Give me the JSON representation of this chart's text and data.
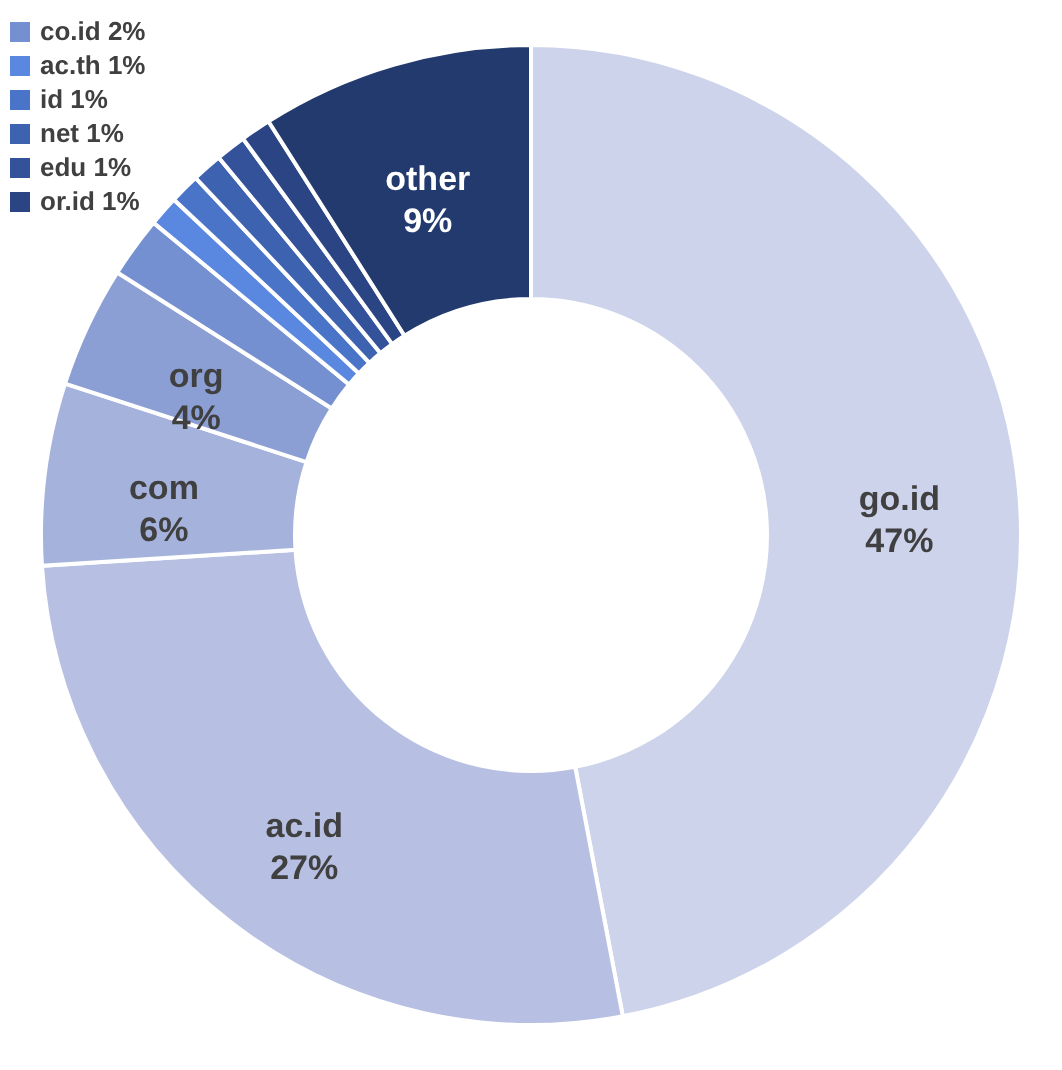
{
  "chart_data": {
    "type": "donut",
    "categories": [
      "go.id",
      "ac.id",
      "com",
      "org",
      "co.id",
      "ac.th",
      "id",
      "net",
      "edu",
      "or.id",
      "other"
    ],
    "values": [
      47,
      27,
      6,
      4,
      2,
      1,
      1,
      1,
      1,
      1,
      9
    ],
    "value_labels": [
      "47%",
      "27%",
      "6%",
      "4%",
      "2%",
      "1%",
      "1%",
      "1%",
      "1%",
      "1%",
      "9%"
    ],
    "colors": [
      "#cdd3ea",
      "#b7c0e2",
      "#a5b2dc",
      "#8c9fd4",
      "#7590d0",
      "#5a88e0",
      "#4a74c8",
      "#3d62b0",
      "#33529a",
      "#2a4484",
      "#223a6e"
    ],
    "legend": "top left"
  }
}
